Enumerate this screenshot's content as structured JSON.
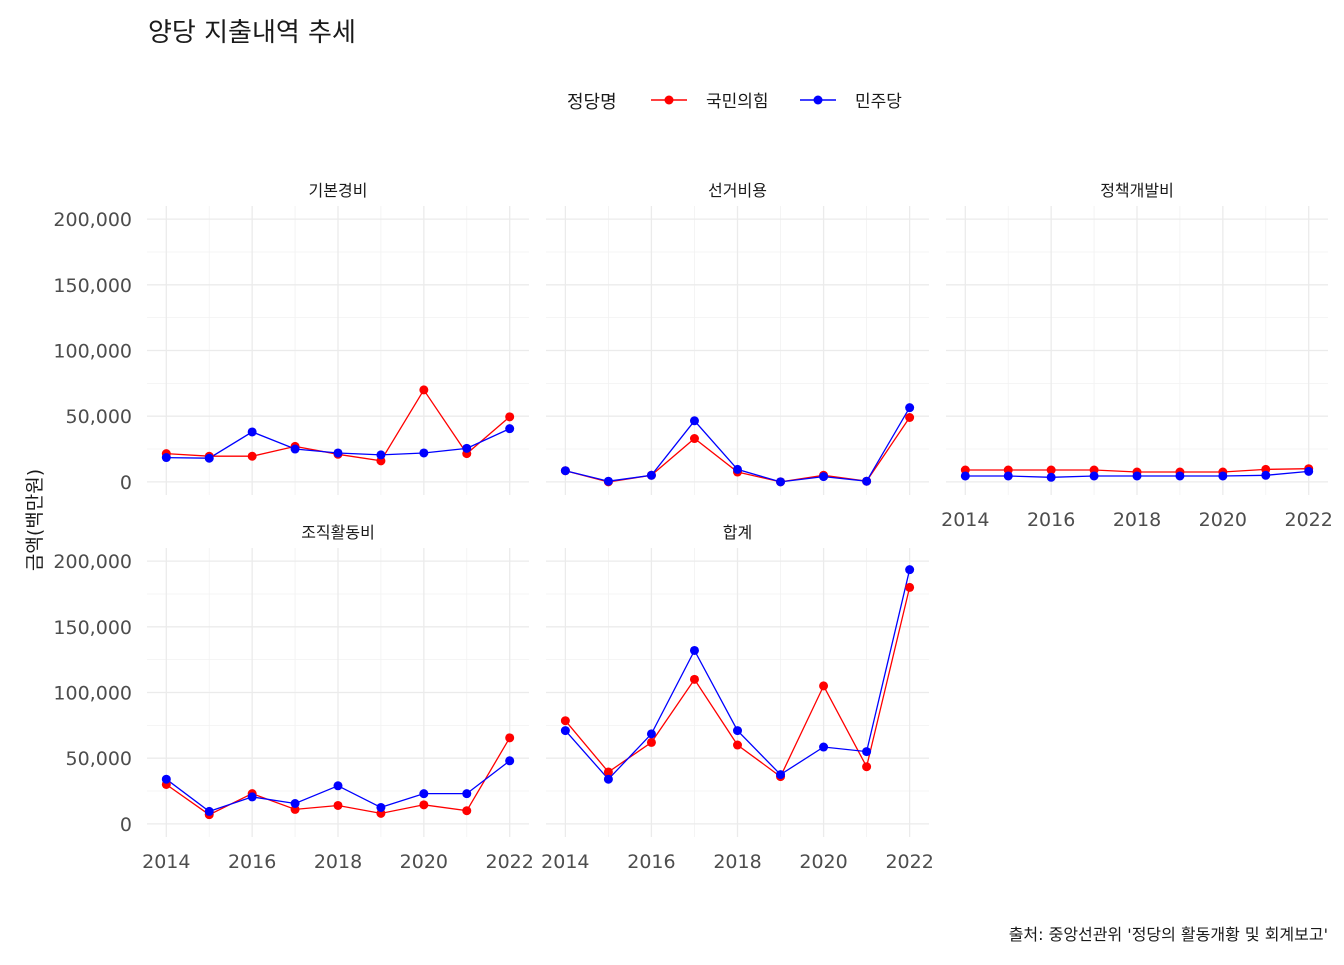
{
  "title": "양당 지출내역 추세",
  "caption": "출처: 중앙선관위 '정당의 활동개황 및 회계보고'",
  "chart_data": {
    "type": "line",
    "title": "양당 지출내역 추세",
    "ylabel": "금액(백만원)",
    "xlabel": "",
    "legend_title": "정당명",
    "legend_position": "top",
    "grid": true,
    "x": [
      2014,
      2015,
      2016,
      2017,
      2018,
      2019,
      2020,
      2021,
      2022
    ],
    "x_ticks": [
      "2014",
      "2016",
      "2018",
      "2020",
      "2022"
    ],
    "y_ticks": [
      "0",
      "50,000",
      "100,000",
      "150,000",
      "200,000"
    ],
    "ylim": [
      0,
      200000
    ],
    "series_colors": {
      "국민의힘": "#ff0000",
      "민주당": "#0000ff"
    },
    "series_names": [
      "국민의힘",
      "민주당"
    ],
    "panels": [
      {
        "name": "기본경비",
        "series": [
          {
            "name": "국민의힘",
            "values": [
              21500,
              19500,
              19500,
              27000,
              21000,
              16000,
              70000,
              21500,
              49500
            ]
          },
          {
            "name": "민주당",
            "values": [
              18500,
              18000,
              38000,
              25000,
              22000,
              20500,
              22000,
              25500,
              40500
            ]
          }
        ]
      },
      {
        "name": "선거비용",
        "series": [
          {
            "name": "국민의힘",
            "values": [
              8500,
              0,
              5000,
              33000,
              7500,
              0,
              5000,
              500,
              49000
            ]
          },
          {
            "name": "민주당",
            "values": [
              8500,
              500,
              5000,
              46500,
              9500,
              0,
              4000,
              500,
              56500
            ]
          }
        ]
      },
      {
        "name": "정책개발비",
        "series": [
          {
            "name": "국민의힘",
            "values": [
              9000,
              9000,
              9000,
              9000,
              7500,
              7500,
              7500,
              9500,
              10000
            ]
          },
          {
            "name": "민주당",
            "values": [
              4500,
              4500,
              3500,
              4500,
              4500,
              4500,
              4500,
              5000,
              8000
            ]
          }
        ]
      },
      {
        "name": "조직활동비",
        "series": [
          {
            "name": "국민의힘",
            "values": [
              30000,
              7000,
              23000,
              11000,
              14000,
              8000,
              14500,
              10000,
              65500
            ]
          },
          {
            "name": "민주당",
            "values": [
              34000,
              9500,
              20500,
              15500,
              29000,
              12500,
              23000,
              23000,
              48000
            ]
          }
        ]
      },
      {
        "name": "합계",
        "series": [
          {
            "name": "국민의힘",
            "values": [
              78500,
              39500,
              62000,
              110000,
              60000,
              36000,
              105000,
              43500,
              180000
            ]
          },
          {
            "name": "민주당",
            "values": [
              71000,
              34000,
              68500,
              132000,
              71000,
              37500,
              58500,
              55000,
              193500
            ]
          }
        ]
      }
    ]
  }
}
